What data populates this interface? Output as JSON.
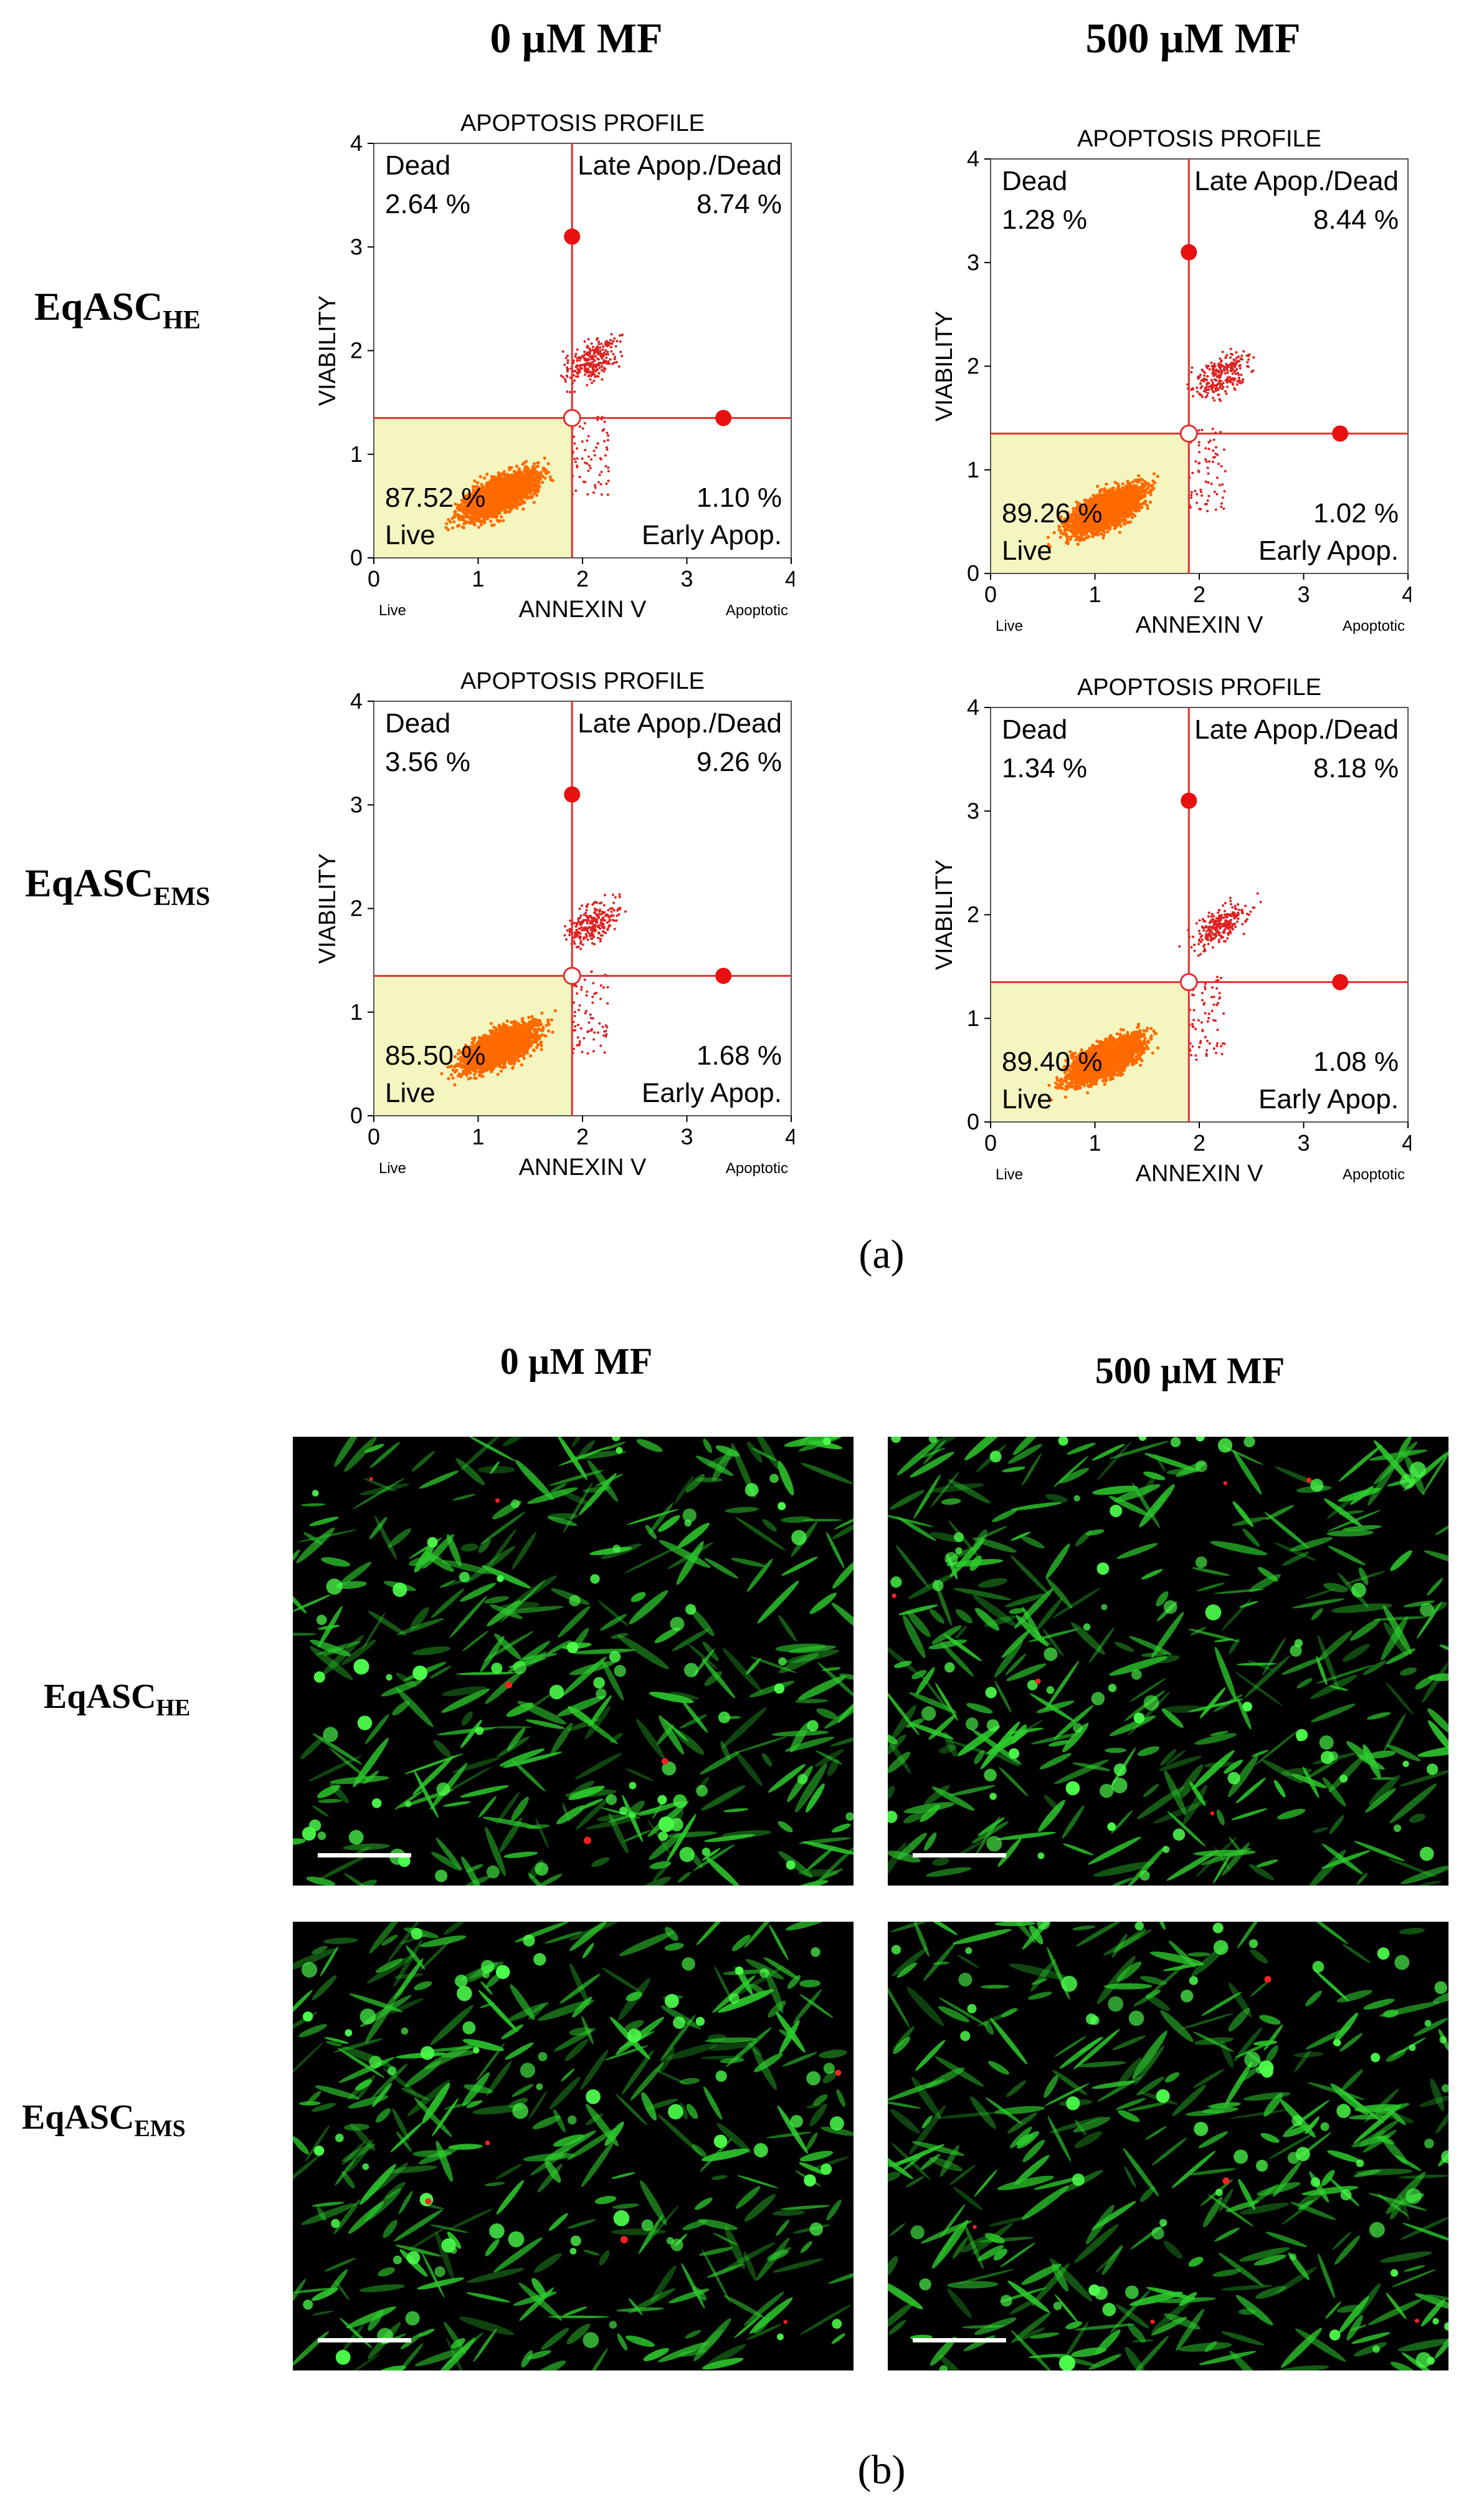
{
  "panel_a": {
    "col_titles": [
      "0 µM MF",
      "500 µM MF"
    ],
    "row_labels": [
      {
        "main": "EqASC",
        "sub": "HE"
      },
      {
        "main": "EqASC",
        "sub": "EMS"
      }
    ],
    "caption": "(a)"
  },
  "panel_b": {
    "col_titles": [
      "0 µM MF",
      "500 µM MF"
    ],
    "row_labels": [
      {
        "main": "EqASC",
        "sub": "HE"
      },
      {
        "main": "EqASC",
        "sub": "EMS"
      }
    ],
    "caption": "(b)"
  },
  "colors": {
    "live_region": "#f5f5bf",
    "gate_line": "#e03030",
    "dot_core": "#ff6a00",
    "dot_sparse": "#e02020",
    "marker": "#e81010",
    "fluor_green": "#2ecc2e",
    "fluor_red": "#ff2020"
  },
  "chart_data": [
    {
      "type": "scatter",
      "panel": "a",
      "title": "APOPTOSIS PROFILE",
      "xlabel": "ANNEXIN V",
      "ylabel": "VIABILITY",
      "x_left_note": "Live",
      "x_right_note": "Apoptotic",
      "xlim": [
        0,
        4
      ],
      "ylim": [
        0,
        4
      ],
      "x_ticks": [
        "0",
        "1",
        "2",
        "3",
        "4"
      ],
      "y_ticks": [
        "0",
        "1",
        "2",
        "3",
        "4"
      ],
      "gate": {
        "x": 1.9,
        "y": 1.35
      },
      "markers": [
        {
          "x": 1.9,
          "y": 3.1
        },
        {
          "x": 3.35,
          "y": 1.35
        }
      ],
      "clusters": [
        {
          "x": 1.2,
          "y": 0.6
        },
        {
          "x": 2.1,
          "y": 1.9
        }
      ],
      "quadrants": {
        "dead": {
          "label": "Dead",
          "value": "2.64 %"
        },
        "late": {
          "label": "Late Apop./Dead",
          "value": "8.74 %"
        },
        "live": {
          "label": "Live",
          "value": "87.52 %"
        },
        "early": {
          "label": "Early Apop.",
          "value": "1.10 %"
        }
      }
    },
    {
      "type": "scatter",
      "panel": "a",
      "title": "APOPTOSIS PROFILE",
      "xlabel": "ANNEXIN V",
      "ylabel": "VIABILITY",
      "x_left_note": "Live",
      "x_right_note": "Apoptotic",
      "xlim": [
        0,
        4
      ],
      "ylim": [
        0,
        4
      ],
      "x_ticks": [
        "0",
        "1",
        "2",
        "3",
        "4"
      ],
      "y_ticks": [
        "0",
        "1",
        "2",
        "3",
        "4"
      ],
      "gate": {
        "x": 1.9,
        "y": 1.35
      },
      "markers": [
        {
          "x": 1.9,
          "y": 3.1
        },
        {
          "x": 3.35,
          "y": 1.35
        }
      ],
      "clusters": [
        {
          "x": 1.1,
          "y": 0.6
        },
        {
          "x": 2.2,
          "y": 1.9
        }
      ],
      "quadrants": {
        "dead": {
          "label": "Dead",
          "value": "1.28 %"
        },
        "late": {
          "label": "Late Apop./Dead",
          "value": "8.44 %"
        },
        "live": {
          "label": "Live",
          "value": "89.26 %"
        },
        "early": {
          "label": "Early Apop.",
          "value": "1.02 %"
        }
      }
    },
    {
      "type": "scatter",
      "panel": "a",
      "title": "APOPTOSIS PROFILE",
      "xlabel": "ANNEXIN V",
      "ylabel": "VIABILITY",
      "x_left_note": "Live",
      "x_right_note": "Apoptotic",
      "xlim": [
        0,
        4
      ],
      "ylim": [
        0,
        4
      ],
      "x_ticks": [
        "0",
        "1",
        "2",
        "3",
        "4"
      ],
      "y_ticks": [
        "0",
        "1",
        "2",
        "3",
        "4"
      ],
      "gate": {
        "x": 1.9,
        "y": 1.35
      },
      "markers": [
        {
          "x": 1.9,
          "y": 3.1
        },
        {
          "x": 3.35,
          "y": 1.35
        }
      ],
      "clusters": [
        {
          "x": 1.2,
          "y": 0.65
        },
        {
          "x": 2.1,
          "y": 1.85
        }
      ],
      "quadrants": {
        "dead": {
          "label": "Dead",
          "value": "3.56 %"
        },
        "late": {
          "label": "Late Apop./Dead",
          "value": "9.26 %"
        },
        "live": {
          "label": "Live",
          "value": "85.50 %"
        },
        "early": {
          "label": "Early Apop.",
          "value": "1.68 %"
        }
      }
    },
    {
      "type": "scatter",
      "panel": "a",
      "title": "APOPTOSIS PROFILE",
      "xlabel": "ANNEXIN V",
      "ylabel": "VIABILITY",
      "x_left_note": "Live",
      "x_right_note": "Apoptotic",
      "xlim": [
        0,
        4
      ],
      "ylim": [
        0,
        4
      ],
      "x_ticks": [
        "0",
        "1",
        "2",
        "3",
        "4"
      ],
      "y_ticks": [
        "0",
        "1",
        "2",
        "3",
        "4"
      ],
      "gate": {
        "x": 1.9,
        "y": 1.35
      },
      "markers": [
        {
          "x": 1.9,
          "y": 3.1
        },
        {
          "x": 3.35,
          "y": 1.35
        }
      ],
      "clusters": [
        {
          "x": 1.1,
          "y": 0.6
        },
        {
          "x": 2.2,
          "y": 1.9
        }
      ],
      "quadrants": {
        "dead": {
          "label": "Dead",
          "value": "1.34 %"
        },
        "late": {
          "label": "Late Apop./Dead",
          "value": "8.18 %"
        },
        "live": {
          "label": "Live",
          "value": "89.40 %"
        },
        "early": {
          "label": "Early Apop.",
          "value": "1.08 %"
        }
      }
    }
  ]
}
